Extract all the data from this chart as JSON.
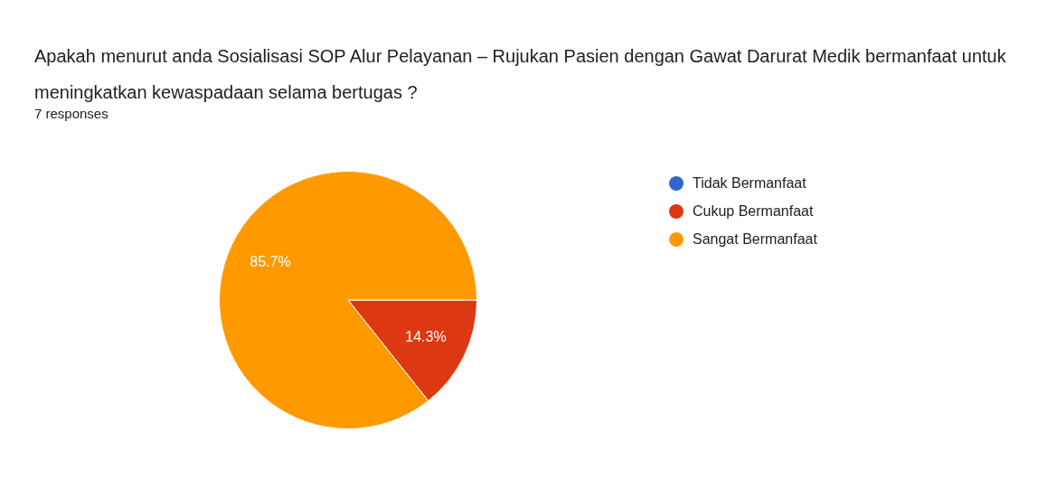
{
  "chart_data": {
    "type": "pie",
    "title": "Apakah menurut anda Sosialisasi SOP Alur Pelayanan – Rujukan Pasien dengan Gawat Darurat Medik bermanfaat untuk meningkatkan kewaspadaan selama bertugas ?",
    "subtitle": "7 responses",
    "categories": [
      "Tidak Bermanfaat",
      "Cukup Bermanfaat",
      "Sangat Bermanfaat"
    ],
    "values": [
      0,
      14.3,
      85.7
    ],
    "colors": [
      "#3366cc",
      "#dc3912",
      "#ff9900"
    ],
    "value_labels": [
      null,
      "14.3%",
      "85.7%"
    ],
    "legend": "right"
  }
}
